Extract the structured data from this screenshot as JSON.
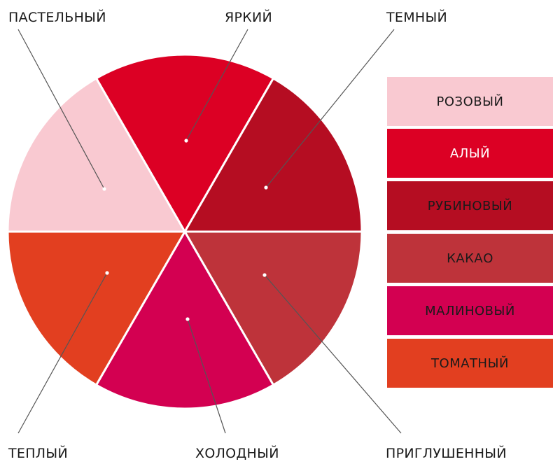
{
  "labels": {
    "pastel": "ПАСТЕЛЬНЫЙ",
    "bright": "ЯРКИЙ",
    "dark": "ТЕМНЫЙ",
    "warm": "ТЕПЛЫЙ",
    "cold": "ХОЛОДНЫЙ",
    "muted": "ПРИГЛУШЕННЫЙ"
  },
  "wheel_segments": [
    {
      "name": "bright",
      "color": "#DC0024"
    },
    {
      "name": "dark",
      "color": "#B50D22"
    },
    {
      "name": "muted",
      "color": "#BE333A"
    },
    {
      "name": "cold",
      "color": "#D30051"
    },
    {
      "name": "warm",
      "color": "#E23F20"
    },
    {
      "name": "pastel",
      "color": "#F9C9D1"
    }
  ],
  "swatches": [
    {
      "label": "РОЗОВЫЙ",
      "color": "#F9C9D1",
      "text_color": "#1a1a1a"
    },
    {
      "label": "АЛЫЙ",
      "color": "#DC0024",
      "text_color": "#ffffff"
    },
    {
      "label": "РУБИНОВЫЙ",
      "color": "#B50D22",
      "text_color": "#1a1a1a"
    },
    {
      "label": "КАКАО",
      "color": "#BE333A",
      "text_color": "#1a1a1a"
    },
    {
      "label": "МАЛИНОВЫЙ",
      "color": "#D30051",
      "text_color": "#1a1a1a"
    },
    {
      "label": "ТОМАТНЫЙ",
      "color": "#E23F20",
      "text_color": "#1a1a1a"
    }
  ]
}
